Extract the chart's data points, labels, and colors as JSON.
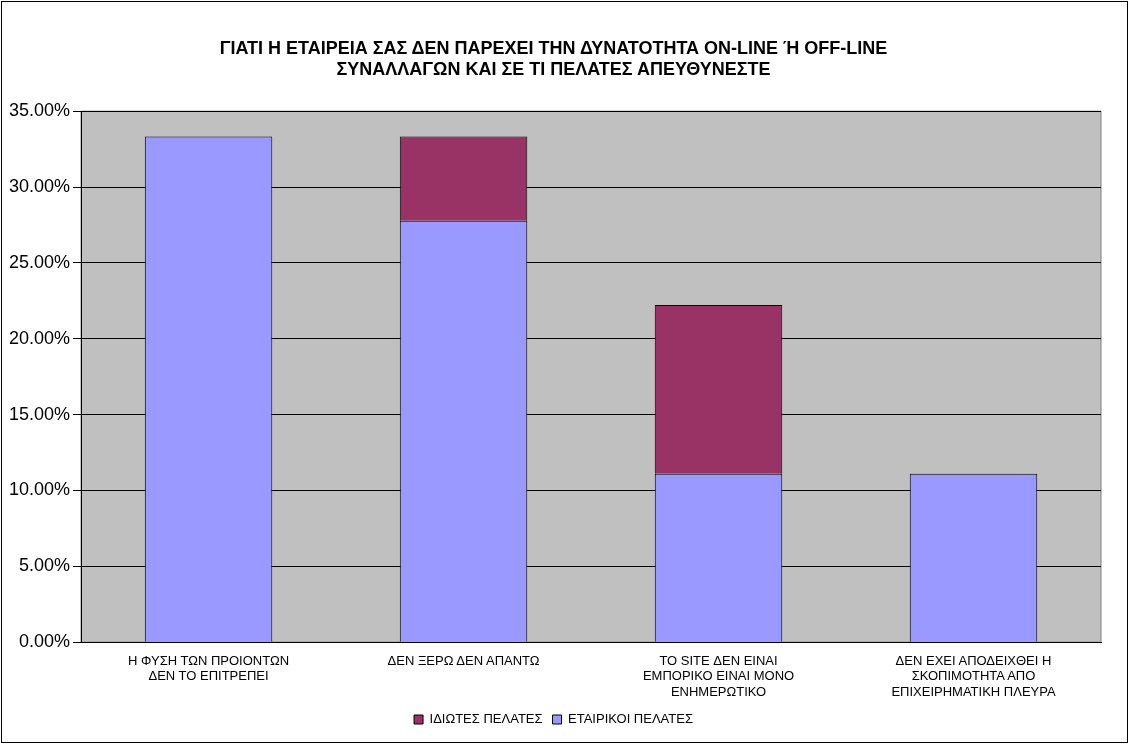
{
  "chart_data": {
    "type": "bar",
    "title": "ΓΙΑΤΙ Η ΕΤΑΙΡΕΙΑ ΣΑΣ ΔΕΝ ΠΑΡΕΧΕΙ ΤΗΝ ΔΥΝΑΤΟΤΗΤΑ ON-LINE Ή OFF-LINE ΣΥΝΑΛΛΑΓΩΝ ΚΑΙ ΣΕ ΤΙ ΠΕΛΑΤΕΣ ΑΠΕΥΘΥΝΕΣΤΕ",
    "categories": [
      "Η ΦΥΣΗ ΤΩΝ ΠΡΟΙΟΝΤΩΝ ΔΕΝ ΤΟ ΕΠΙΤΡΕΠΕΙ",
      "ΔΕΝ ΞΕΡΩ ΔΕΝ ΑΠΑΝΤΩ",
      "ΤΟ SITE ΔΕΝ ΕΙΝΑΙ ΕΜΠΟΡΙΚΟ ΕΙΝΑΙ ΜΟΝΟ ΕΝΗΜΕΡΩΤΙΚΟ",
      "ΔΕΝ ΕΧΕΙ ΑΠΟΔΕΙΧΘΕΙ Η ΣΚΟΠΙΜΟΤΗΤΑ ΑΠΟ ΕΠΙΧΕΙΡΗΜΑΤΙΚΗ ΠΛΕΥΡΑ"
    ],
    "stacked": true,
    "series": [
      {
        "name": "ΕΤΑΙΡΙΚΟΙ ΠΕΛΑΤΕΣ",
        "color": "#9999ff",
        "values": [
          33.33,
          27.78,
          11.11,
          11.11
        ]
      },
      {
        "name": "ΙΔΙΩΤΕΣ ΠΕΛΑΤΕΣ",
        "color": "#993366",
        "values": [
          0,
          5.56,
          11.11,
          0
        ]
      }
    ],
    "ylim": [
      0,
      35
    ],
    "yticks": [
      {
        "value": 0,
        "label": "0.00%"
      },
      {
        "value": 5,
        "label": "5.00%"
      },
      {
        "value": 10,
        "label": "10.00%"
      },
      {
        "value": 15,
        "label": "15.00%"
      },
      {
        "value": 20,
        "label": "20.00%"
      },
      {
        "value": 25,
        "label": "25.00%"
      },
      {
        "value": 30,
        "label": "30.00%"
      },
      {
        "value": 35,
        "label": "35.00%"
      }
    ],
    "grid": "y",
    "legend": "bottom"
  }
}
